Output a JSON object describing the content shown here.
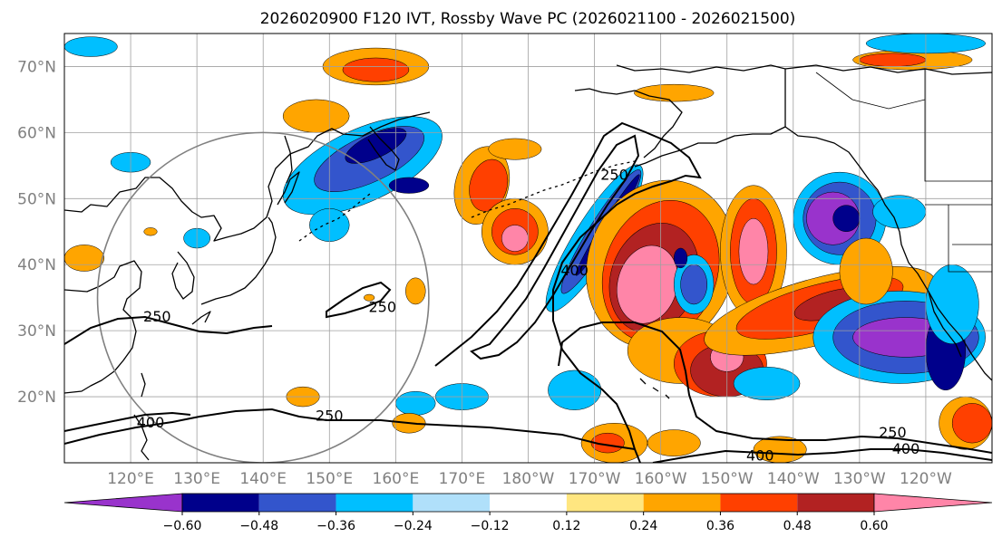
{
  "title": "2026020900 F120 IVT, Rossby Wave PC (2026021100 - 2026021500)",
  "map": {
    "projection": "PlateCarree",
    "lon_range": [
      110,
      250
    ],
    "lat_range": [
      10,
      75
    ],
    "lat_ticks": [
      {
        "value": 70,
        "label": "70°N"
      },
      {
        "value": 60,
        "label": "60°N"
      },
      {
        "value": 50,
        "label": "50°N"
      },
      {
        "value": 40,
        "label": "40°N"
      },
      {
        "value": 30,
        "label": "30°N"
      },
      {
        "value": 20,
        "label": "20°N"
      }
    ],
    "lon_ticks": [
      {
        "value": 120,
        "label": "120°E"
      },
      {
        "value": 130,
        "label": "130°E"
      },
      {
        "value": 140,
        "label": "140°E"
      },
      {
        "value": 150,
        "label": "150°E"
      },
      {
        "value": 160,
        "label": "160°E"
      },
      {
        "value": 170,
        "label": "170°E"
      },
      {
        "value": 180,
        "label": "180°W"
      },
      {
        "value": 190,
        "label": "170°W"
      },
      {
        "value": 200,
        "label": "160°W"
      },
      {
        "value": 210,
        "label": "150°W"
      },
      {
        "value": 220,
        "label": "140°W"
      },
      {
        "value": 230,
        "label": "130°W"
      },
      {
        "value": 240,
        "label": "120°W"
      }
    ],
    "grid": true,
    "grid_color": "#a0a0a0",
    "coastline_color": "#000000",
    "circle": {
      "center_lon": 140,
      "center_lat": 35,
      "radius_deg": 25,
      "color": "#808080"
    }
  },
  "colorbar": {
    "extend": "both",
    "bounds": [
      -0.72,
      -0.6,
      -0.48,
      -0.36,
      -0.24,
      -0.12,
      0.12,
      0.24,
      0.36,
      0.48,
      0.6,
      0.72
    ],
    "colors": [
      "#9933cc",
      "#00008b",
      "#3355cc",
      "#00bfff",
      "#b0e0fa",
      "#ffffff",
      "#ffe680",
      "#ffa500",
      "#ff4000",
      "#b22222",
      "#ff85a8"
    ],
    "tick_labels": [
      {
        "value": -0.6,
        "label": "−0.60"
      },
      {
        "value": -0.48,
        "label": "−0.48"
      },
      {
        "value": -0.36,
        "label": "−0.36"
      },
      {
        "value": -0.24,
        "label": "−0.24"
      },
      {
        "value": -0.12,
        "label": "−0.12"
      },
      {
        "value": 0.12,
        "label": "0.12"
      },
      {
        "value": 0.24,
        "label": "0.24"
      },
      {
        "value": 0.36,
        "label": "0.36"
      },
      {
        "value": 0.48,
        "label": "0.48"
      },
      {
        "value": 0.6,
        "label": "0.60"
      }
    ]
  },
  "shaded_blobs": [
    {
      "v": 0.3,
      "lon": 157,
      "lat": 70,
      "rx": 8,
      "ry": 2.8
    },
    {
      "v": 0.42,
      "lon": 157,
      "lat": 69.5,
      "rx": 5,
      "ry": 1.8
    },
    {
      "v": 0.3,
      "lon": 148,
      "lat": 62.5,
      "rx": 5,
      "ry": 2.5
    },
    {
      "v": 0.3,
      "lon": 202,
      "lat": 66,
      "rx": 6,
      "ry": 1.3
    },
    {
      "v": 0.3,
      "lon": 238,
      "lat": 71,
      "rx": 9,
      "ry": 1.5
    },
    {
      "v": 0.42,
      "lon": 235,
      "lat": 71,
      "rx": 5,
      "ry": 1
    },
    {
      "v": -0.3,
      "lon": 114,
      "lat": 73,
      "rx": 4,
      "ry": 1.5
    },
    {
      "v": -0.3,
      "lon": 240,
      "lat": 73.5,
      "rx": 9,
      "ry": 1.5
    },
    {
      "v": -0.3,
      "lon": 120,
      "lat": 55.5,
      "rx": 3,
      "ry": 1.5
    },
    {
      "v": -0.3,
      "lon": 155,
      "lat": 55,
      "rx": 13,
      "ry": 5.5,
      "rot": -25
    },
    {
      "v": -0.42,
      "lon": 156,
      "lat": 56,
      "rx": 9,
      "ry": 3.5,
      "rot": -25
    },
    {
      "v": -0.54,
      "lon": 157,
      "lat": 58,
      "rx": 5,
      "ry": 1.8,
      "rot": -25
    },
    {
      "v": -0.54,
      "lon": 162,
      "lat": 52,
      "rx": 3,
      "ry": 1.2
    },
    {
      "v": -0.3,
      "lon": 150,
      "lat": 46,
      "rx": 3,
      "ry": 2.5
    },
    {
      "v": 0.3,
      "lon": 173,
      "lat": 52,
      "rx": 4,
      "ry": 6,
      "rot": 15
    },
    {
      "v": 0.42,
      "lon": 174,
      "lat": 52,
      "rx": 2.8,
      "ry": 4,
      "rot": 15
    },
    {
      "v": 0.3,
      "lon": 178,
      "lat": 45,
      "rx": 5,
      "ry": 5,
      "rot": -20
    },
    {
      "v": 0.42,
      "lon": 178,
      "lat": 45,
      "rx": 3.5,
      "ry": 3.5
    },
    {
      "v": 0.66,
      "lon": 178,
      "lat": 44,
      "rx": 2,
      "ry": 2
    },
    {
      "v": 0.3,
      "lon": 178,
      "lat": 57.5,
      "rx": 4,
      "ry": 1.6
    },
    {
      "v": -0.3,
      "lon": 190,
      "lat": 44,
      "rx": 3,
      "ry": 13,
      "rot": 32
    },
    {
      "v": -0.42,
      "lon": 191,
      "lat": 45,
      "rx": 1.8,
      "ry": 11,
      "rot": 32
    },
    {
      "v": -0.54,
      "lon": 192,
      "lat": 46,
      "rx": 0.8,
      "ry": 9,
      "rot": 32
    },
    {
      "v": 0.3,
      "lon": 200,
      "lat": 40,
      "rx": 11,
      "ry": 13,
      "rot": 20
    },
    {
      "v": 0.42,
      "lon": 200,
      "lat": 39,
      "rx": 8.5,
      "ry": 11,
      "rot": 20
    },
    {
      "v": 0.54,
      "lon": 199,
      "lat": 38,
      "rx": 6.5,
      "ry": 8.5,
      "rot": 20
    },
    {
      "v": 0.66,
      "lon": 198,
      "lat": 37,
      "rx": 4.5,
      "ry": 6,
      "rot": 15
    },
    {
      "v": 0.3,
      "lon": 203,
      "lat": 27,
      "rx": 8,
      "ry": 5
    },
    {
      "v": 0.42,
      "lon": 209,
      "lat": 25,
      "rx": 7,
      "ry": 5
    },
    {
      "v": 0.54,
      "lon": 210,
      "lat": 24,
      "rx": 5.5,
      "ry": 4
    },
    {
      "v": 0.66,
      "lon": 210,
      "lat": 26,
      "rx": 2.5,
      "ry": 2.2
    },
    {
      "v": 0.3,
      "lon": 214,
      "lat": 42,
      "rx": 5,
      "ry": 10
    },
    {
      "v": 0.42,
      "lon": 214,
      "lat": 42,
      "rx": 3.5,
      "ry": 8
    },
    {
      "v": 0.66,
      "lon": 214,
      "lat": 42,
      "rx": 2.2,
      "ry": 5
    },
    {
      "v": 0.3,
      "lon": 224,
      "lat": 33,
      "rx": 18,
      "ry": 5,
      "rot": -15
    },
    {
      "v": 0.42,
      "lon": 224,
      "lat": 33.5,
      "rx": 13,
      "ry": 3.5,
      "rot": -15
    },
    {
      "v": 0.54,
      "lon": 226,
      "lat": 34,
      "rx": 6,
      "ry": 2,
      "rot": -15
    },
    {
      "v": -0.3,
      "lon": 205,
      "lat": 37,
      "rx": 3,
      "ry": 4.5
    },
    {
      "v": -0.42,
      "lon": 205,
      "lat": 37,
      "rx": 2,
      "ry": 3
    },
    {
      "v": -0.54,
      "lon": 203,
      "lat": 41,
      "rx": 1,
      "ry": 1.5
    },
    {
      "v": -0.3,
      "lon": 227,
      "lat": 47,
      "rx": 7,
      "ry": 7
    },
    {
      "v": -0.42,
      "lon": 227,
      "lat": 47,
      "rx": 5.5,
      "ry": 5.5
    },
    {
      "v": -0.66,
      "lon": 226,
      "lat": 47,
      "rx": 4,
      "ry": 4
    },
    {
      "v": -0.54,
      "lon": 228,
      "lat": 47,
      "rx": 2,
      "ry": 2
    },
    {
      "v": -0.3,
      "lon": 236,
      "lat": 48,
      "rx": 4,
      "ry": 2.5
    },
    {
      "v": -0.3,
      "lon": 236,
      "lat": 29,
      "rx": 13,
      "ry": 7
    },
    {
      "v": -0.42,
      "lon": 237,
      "lat": 29,
      "rx": 11,
      "ry": 5.5
    },
    {
      "v": -0.66,
      "lon": 237,
      "lat": 29,
      "rx": 8,
      "ry": 3
    },
    {
      "v": -0.54,
      "lon": 243,
      "lat": 27,
      "rx": 3,
      "ry": 6
    },
    {
      "v": -0.3,
      "lon": 244,
      "lat": 34,
      "rx": 4,
      "ry": 6
    },
    {
      "v": 0.3,
      "lon": 231,
      "lat": 39,
      "rx": 4,
      "ry": 5
    },
    {
      "v": 0.3,
      "lon": 246,
      "lat": 16,
      "rx": 4,
      "ry": 4
    },
    {
      "v": 0.42,
      "lon": 247,
      "lat": 16,
      "rx": 3,
      "ry": 3
    },
    {
      "v": -0.3,
      "lon": 216,
      "lat": 22,
      "rx": 5,
      "ry": 2.5
    },
    {
      "v": -0.3,
      "lon": 170,
      "lat": 20,
      "rx": 4,
      "ry": 2
    },
    {
      "v": -0.3,
      "lon": 163,
      "lat": 19,
      "rx": 3,
      "ry": 1.8
    },
    {
      "v": -0.3,
      "lon": 187,
      "lat": 21,
      "rx": 4,
      "ry": 3
    },
    {
      "v": 0.3,
      "lon": 193,
      "lat": 13,
      "rx": 5,
      "ry": 3
    },
    {
      "v": 0.42,
      "lon": 192,
      "lat": 13,
      "rx": 2.5,
      "ry": 1.5
    },
    {
      "v": 0.3,
      "lon": 202,
      "lat": 13,
      "rx": 4,
      "ry": 2
    },
    {
      "v": 0.3,
      "lon": 218,
      "lat": 12,
      "rx": 4,
      "ry": 2
    },
    {
      "v": 0.3,
      "lon": 146,
      "lat": 20,
      "rx": 2.5,
      "ry": 1.5
    },
    {
      "v": 0.3,
      "lon": 162,
      "lat": 16,
      "rx": 2.5,
      "ry": 1.5
    },
    {
      "v": 0.3,
      "lon": 163,
      "lat": 36,
      "rx": 1.5,
      "ry": 2
    },
    {
      "v": 0.3,
      "lon": 113,
      "lat": 41,
      "rx": 3,
      "ry": 2
    },
    {
      "v": 0.3,
      "lon": 123,
      "lat": 45,
      "rx": 1,
      "ry": 0.6
    },
    {
      "v": 0.3,
      "lon": 156,
      "lat": 35,
      "rx": 0.8,
      "ry": 0.5
    },
    {
      "v": -0.3,
      "lon": 130,
      "lat": 44,
      "rx": 2,
      "ry": 1.5
    }
  ],
  "contours": [
    {
      "level": 250,
      "label": "250",
      "label_lon": 124,
      "label_lat": 31.5
    },
    {
      "level": 250,
      "label": "250",
      "label_lon": 158,
      "label_lat": 33
    },
    {
      "level": 250,
      "label": "250",
      "label_lon": 150,
      "label_lat": 16.5
    },
    {
      "level": 250,
      "label": "250",
      "label_lon": 193,
      "label_lat": 53
    },
    {
      "level": 250,
      "label": "250",
      "label_lon": 235,
      "label_lat": 14
    },
    {
      "level": 400,
      "label": "400",
      "label_lon": 123,
      "label_lat": 15.5
    },
    {
      "level": 400,
      "label": "400",
      "label_lon": 187,
      "label_lat": 38.5
    },
    {
      "level": 400,
      "label": "400",
      "label_lon": 215,
      "label_lat": 10.5
    },
    {
      "level": 400,
      "label": "400",
      "label_lon": 237,
      "label_lat": 11.5
    }
  ]
}
